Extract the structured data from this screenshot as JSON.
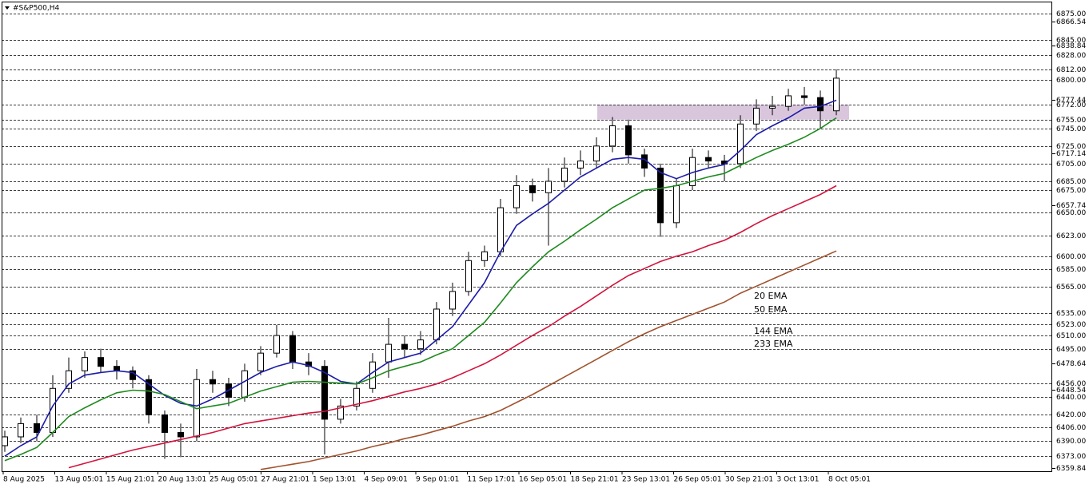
{
  "chart_data": {
    "type": "candlestick",
    "title": "#S&P500,H4",
    "open": [
      6385,
      6395,
      6410,
      6400,
      6450,
      6470,
      6485,
      6475,
      6470,
      6460,
      6420,
      6400,
      6395,
      6460,
      6455,
      6440,
      6470,
      6490,
      6510,
      6480,
      6475,
      6415,
      6430,
      6450,
      6480,
      6500,
      6495,
      6505,
      6540,
      6560,
      6595,
      6605,
      6655,
      6680,
      6672,
      6685,
      6700,
      6708,
      6725,
      6748,
      6715,
      6700,
      6638,
      6680,
      6712,
      6708,
      6705,
      6750,
      6768,
      6770,
      6782,
      6780,
      6765
    ],
    "high": [
      6402,
      6417,
      6420,
      6465,
      6485,
      6492,
      6495,
      6482,
      6475,
      6465,
      6425,
      6410,
      6472,
      6470,
      6462,
      6478,
      6498,
      6522,
      6515,
      6490,
      6482,
      6438,
      6458,
      6490,
      6530,
      6510,
      6515,
      6548,
      6570,
      6605,
      6612,
      6665,
      6692,
      6688,
      6700,
      6712,
      6720,
      6735,
      6758,
      6755,
      6722,
      6705,
      6688,
      6722,
      6720,
      6715,
      6760,
      6778,
      6782,
      6790,
      6792,
      6788,
      6812
    ],
    "low": [
      6378,
      6388,
      6390,
      6395,
      6445,
      6462,
      6468,
      6460,
      6450,
      6410,
      6370,
      6372,
      6390,
      6445,
      6430,
      6435,
      6465,
      6485,
      6472,
      6465,
      6375,
      6410,
      6425,
      6445,
      6462,
      6485,
      6488,
      6500,
      6532,
      6555,
      6588,
      6600,
      6648,
      6662,
      6612,
      6678,
      6692,
      6700,
      6718,
      6705,
      6690,
      6622,
      6632,
      6675,
      6700,
      6685,
      6700,
      6742,
      6760,
      6765,
      6772,
      6745,
      6760
    ],
    "close": [
      6395,
      6410,
      6400,
      6450,
      6470,
      6485,
      6475,
      6470,
      6460,
      6420,
      6400,
      6395,
      6460,
      6455,
      6440,
      6470,
      6490,
      6510,
      6480,
      6475,
      6415,
      6430,
      6450,
      6480,
      6500,
      6495,
      6505,
      6540,
      6560,
      6595,
      6605,
      6655,
      6680,
      6672,
      6685,
      6700,
      6708,
      6725,
      6748,
      6715,
      6700,
      6638,
      6680,
      6712,
      6708,
      6705,
      6750,
      6768,
      6770,
      6782,
      6780,
      6765,
      6802
    ],
    "series": [
      {
        "name": "20 EMA",
        "color": "#1c1ca8",
        "values": [
          6373,
          6385,
          6395,
          6430,
          6455,
          6465,
          6468,
          6470,
          6468,
          6455,
          6442,
          6433,
          6430,
          6438,
          6448,
          6458,
          6468,
          6475,
          6480,
          6476,
          6468,
          6458,
          6455,
          6468,
          6480,
          6485,
          6490,
          6505,
          6520,
          6545,
          6570,
          6605,
          6635,
          6648,
          6660,
          6675,
          6690,
          6700,
          6710,
          6712,
          6710,
          6695,
          6688,
          6695,
          6700,
          6704,
          6720,
          6738,
          6748,
          6757,
          6768,
          6770,
          6777
        ]
      },
      {
        "name": "50 EMA",
        "color": "#1e8a1e",
        "values": [
          6368,
          6375,
          6383,
          6400,
          6418,
          6428,
          6437,
          6445,
          6448,
          6447,
          6443,
          6435,
          6427,
          6430,
          6433,
          6440,
          6447,
          6452,
          6457,
          6458,
          6457,
          6456,
          6455,
          6462,
          6470,
          6475,
          6480,
          6488,
          6495,
          6510,
          6525,
          6547,
          6570,
          6588,
          6605,
          6617,
          6630,
          6642,
          6655,
          6665,
          6675,
          6677,
          6680,
          6685,
          6690,
          6694,
          6703,
          6712,
          6720,
          6727,
          6735,
          6745,
          6757
        ]
      },
      {
        "name": "144 EMA",
        "color": "#d2143c",
        "values": [
          null,
          null,
          null,
          null,
          6360,
          6365,
          6370,
          6375,
          6380,
          6384,
          6388,
          6392,
          6396,
          6400,
          6405,
          6410,
          6413,
          6416,
          6419,
          6422,
          6424,
          6428,
          6432,
          6436,
          6441,
          6446,
          6450,
          6455,
          6462,
          6470,
          6478,
          6488,
          6499,
          6510,
          6520,
          6532,
          6543,
          6555,
          6567,
          6578,
          6586,
          6594,
          6600,
          6605,
          6612,
          6618,
          6627,
          6637,
          6646,
          6654,
          6662,
          6670,
          6680
        ]
      },
      {
        "name": "233 EMA",
        "color": "#a0522d",
        "values": [
          null,
          null,
          null,
          null,
          null,
          null,
          null,
          null,
          null,
          null,
          null,
          null,
          null,
          null,
          null,
          null,
          6358,
          6361,
          6364,
          6367,
          6371,
          6375,
          6379,
          6384,
          6388,
          6393,
          6397,
          6402,
          6407,
          6413,
          6418,
          6425,
          6434,
          6443,
          6453,
          6463,
          6473,
          6483,
          6493,
          6503,
          6512,
          6520,
          6527,
          6534,
          6541,
          6548,
          6558,
          6566,
          6574,
          6582,
          6590,
          6598,
          6606
        ]
      }
    ],
    "zone": {
      "top": 6772,
      "bottom": 6755,
      "color": "#d9c6dd"
    },
    "xticks": [
      "8 Aug 2025",
      "13 Aug 05:01",
      "15 Aug 21:01",
      "20 Aug 13:01",
      "25 Aug 05:01",
      "27 Aug 21:01",
      "1 Sep 13:01",
      "4 Sep 09:01",
      "9 Sep 01:01",
      "11 Sep 17:01",
      "16 Sep 05:01",
      "18 Sep 21:01",
      "23 Sep 13:01",
      "26 Sep 05:01",
      "30 Sep 21:01",
      "3 Oct 13:01",
      "8 Oct 05:01"
    ],
    "ylim": [
      6356,
      6888
    ],
    "yticks": [
      6866.54,
      6838.84,
      6777.44,
      6717.14,
      6657.74,
      6478.64,
      6448.54,
      6359.84
    ],
    "levels": [
      {
        "value": 6875,
        "label": "6875.00"
      },
      {
        "value": 6845,
        "label": "6845.00"
      },
      {
        "value": 6828,
        "label": "6828.00"
      },
      {
        "value": 6812,
        "label": "6812.00"
      },
      {
        "value": 6800,
        "label": "6800.00"
      },
      {
        "value": 6772,
        "label": "6772.00"
      },
      {
        "value": 6755,
        "label": "6755.00"
      },
      {
        "value": 6745,
        "label": "6745.00"
      },
      {
        "value": 6725,
        "label": "6725.00"
      },
      {
        "value": 6705,
        "label": "6705.00"
      },
      {
        "value": 6685,
        "label": "6685.00"
      },
      {
        "value": 6675,
        "label": "6675.00"
      },
      {
        "value": 6650,
        "label": "6650.00"
      },
      {
        "value": 6623,
        "label": "6623.00"
      },
      {
        "value": 6600,
        "label": "6600.00"
      },
      {
        "value": 6585,
        "label": "6585.00"
      },
      {
        "value": 6565,
        "label": "6565.00"
      },
      {
        "value": 6535,
        "label": "6535.00"
      },
      {
        "value": 6523,
        "label": "6523.00"
      },
      {
        "value": 6510,
        "label": "6510.00"
      },
      {
        "value": 6495,
        "label": "6495.00"
      },
      {
        "value": 6456,
        "label": "6456.00"
      },
      {
        "value": 6440,
        "label": "6440.00"
      },
      {
        "value": 6420,
        "label": "6420.00"
      },
      {
        "value": 6406,
        "label": "6406.00"
      },
      {
        "value": 6390,
        "label": "6390.00"
      },
      {
        "value": 6373,
        "label": "6373.00"
      }
    ]
  }
}
